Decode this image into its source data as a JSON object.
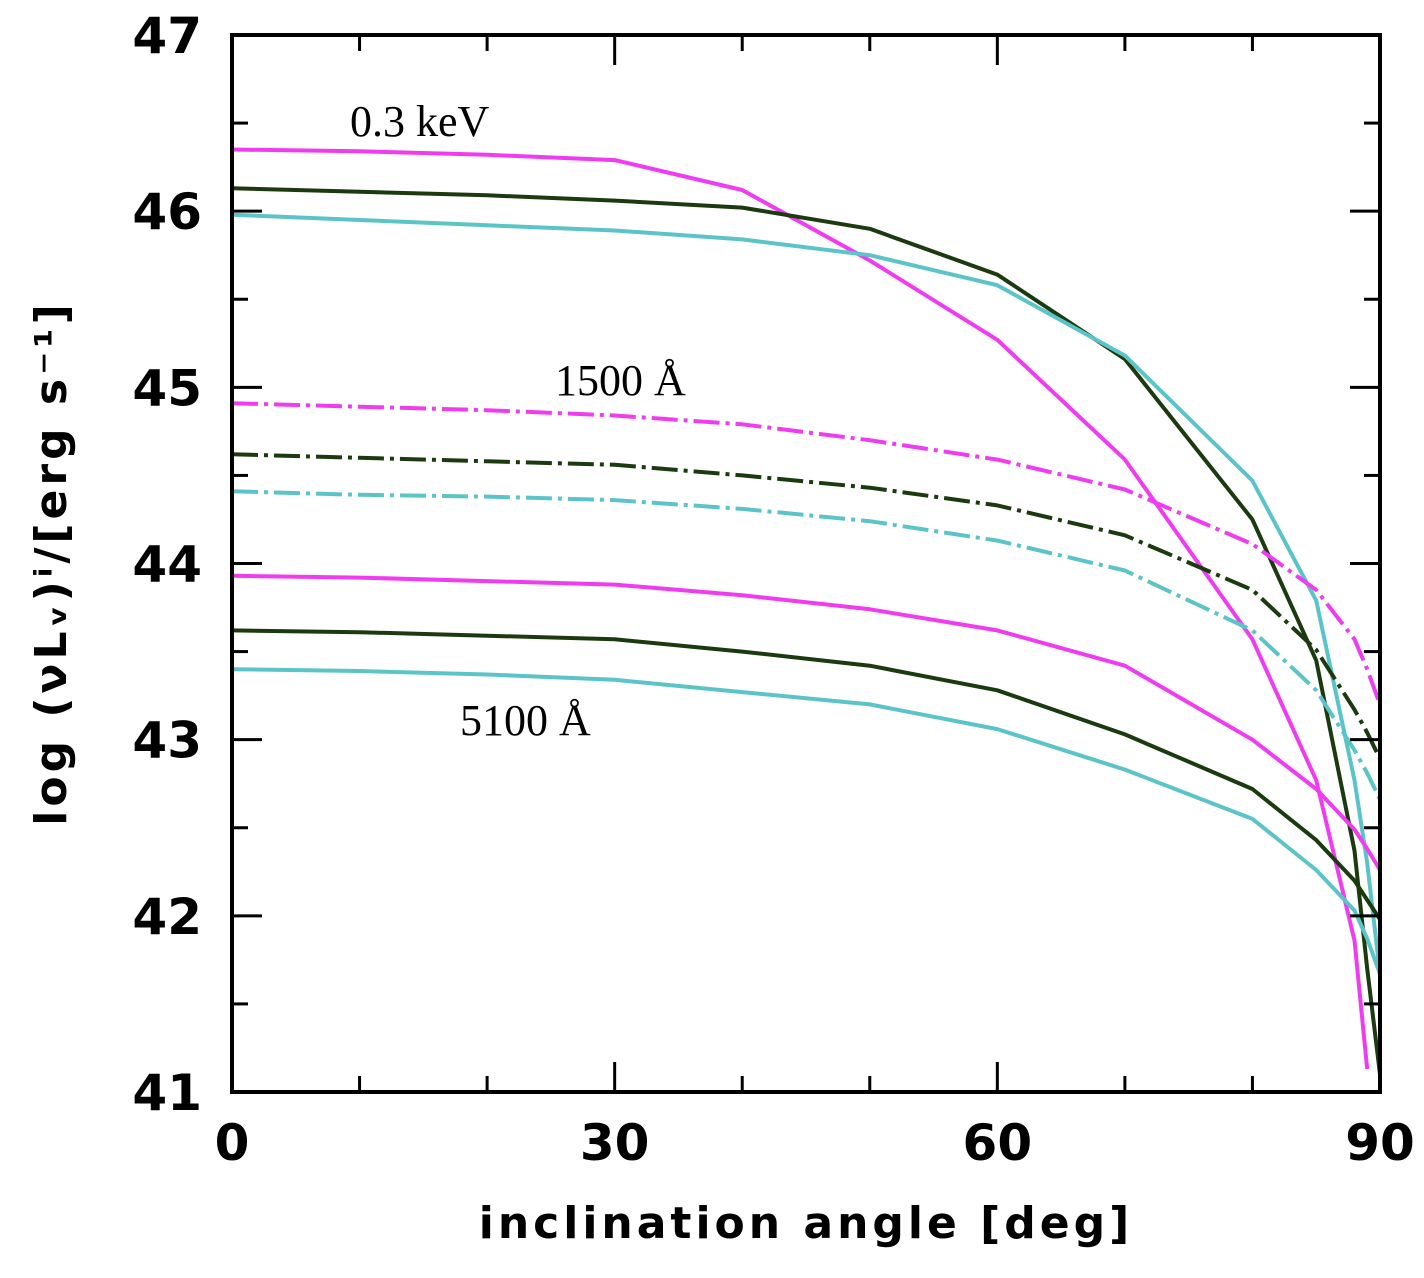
{
  "chart_data": {
    "type": "line",
    "xlabel": "inclination angle [deg]",
    "ylabel": "log (νLᵥ)ⁱ/[erg s⁻¹]",
    "annotations": [
      "0.3 keV",
      "1500 Å",
      "5100 Å"
    ],
    "x": [
      0,
      10,
      20,
      30,
      40,
      50,
      60,
      70,
      80,
      85,
      88,
      89,
      90
    ],
    "xlim": [
      0,
      90
    ],
    "xticks": [
      0,
      30,
      60,
      90
    ],
    "xminorticks": [
      10,
      20,
      40,
      50,
      70,
      80
    ],
    "ylim": [
      41,
      47
    ],
    "yticks": [
      41,
      42,
      43,
      44,
      45,
      46,
      47
    ],
    "yminorticks": [
      41.5,
      42.5,
      43.5,
      44.5,
      45.5,
      46.5
    ],
    "series": [
      {
        "color": "#f03cf0",
        "style": "solid",
        "values": [
          46.35,
          46.34,
          46.32,
          46.29,
          46.12,
          45.72,
          45.27,
          44.59,
          43.57,
          42.77,
          41.86,
          41.13,
          null
        ]
      },
      {
        "color": "#1c3a0f",
        "style": "solid",
        "values": [
          46.13,
          46.11,
          46.09,
          46.06,
          46.02,
          45.9,
          45.64,
          45.16,
          44.25,
          43.45,
          42.37,
          41.7,
          41.1
        ]
      },
      {
        "color": "#5bc4c8",
        "style": "solid",
        "values": [
          45.98,
          45.95,
          45.92,
          45.89,
          45.84,
          45.75,
          45.58,
          45.18,
          44.47,
          43.79,
          42.77,
          42.3,
          41.67
        ]
      },
      {
        "color": "#f03cf0",
        "style": "dashdot",
        "values": [
          44.91,
          44.89,
          44.87,
          44.84,
          44.79,
          44.7,
          44.59,
          44.42,
          44.11,
          43.85,
          43.57,
          43.4,
          43.2
        ]
      },
      {
        "color": "#1c3a0f",
        "style": "dashdot",
        "values": [
          44.62,
          44.6,
          44.58,
          44.56,
          44.5,
          44.43,
          44.33,
          44.16,
          43.85,
          43.51,
          43.17,
          43.04,
          42.89
        ]
      },
      {
        "color": "#5bc4c8",
        "style": "dashdot",
        "values": [
          44.41,
          44.39,
          44.38,
          44.36,
          44.31,
          44.24,
          44.13,
          43.96,
          43.62,
          43.28,
          42.94,
          42.81,
          42.66
        ]
      },
      {
        "color": "#f03cf0",
        "style": "solid",
        "values": [
          43.93,
          43.92,
          43.9,
          43.88,
          43.82,
          43.74,
          43.62,
          43.42,
          43.0,
          42.72,
          42.49,
          42.38,
          42.26
        ]
      },
      {
        "color": "#1c3a0f",
        "style": "solid",
        "values": [
          43.62,
          43.61,
          43.59,
          43.57,
          43.5,
          43.42,
          43.28,
          43.03,
          42.72,
          42.43,
          42.2,
          42.09,
          41.98
        ]
      },
      {
        "color": "#5bc4c8",
        "style": "solid",
        "values": [
          43.4,
          43.39,
          43.37,
          43.34,
          43.27,
          43.2,
          43.06,
          42.83,
          42.55,
          42.26,
          42.03,
          41.87,
          41.67
        ]
      }
    ]
  }
}
